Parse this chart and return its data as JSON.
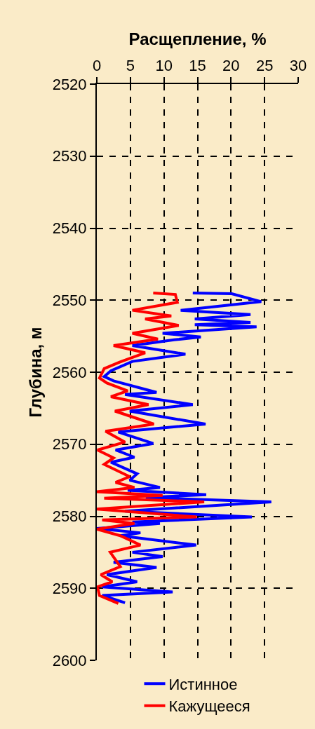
{
  "chart_data": {
    "type": "line",
    "xlabel": "Расщепление, %",
    "ylabel": "Глубина, м",
    "xlim": [
      0,
      30
    ],
    "xticks": [
      0,
      5,
      10,
      15,
      20,
      25,
      30
    ],
    "ylim": [
      2600,
      2520
    ],
    "yticks": [
      2520,
      2530,
      2540,
      2550,
      2560,
      2570,
      2580,
      2590,
      2600
    ],
    "grid": true,
    "legend": "bottom",
    "line_style": "solid",
    "series": [
      {
        "name": "Истинное",
        "color": "#0000ff",
        "x": [
          14.3,
          20.1,
          24.5,
          12.5,
          22.9,
          14.6,
          22.9,
          14.6,
          23.8,
          9.8,
          15.5,
          11.5,
          5.3,
          13.2,
          5.3,
          2.1,
          1.1,
          2.5,
          8.9,
          4.2,
          14.3,
          4.9,
          16.2,
          3.2,
          8.4,
          2.8,
          5.6,
          2.1,
          6.0,
          4.9,
          9.4,
          4.6,
          16.3,
          7.3,
          26.0,
          4.2,
          23.1,
          5.3,
          9.4,
          0,
          6.5,
          3.5,
          14.8,
          5.3,
          9.8,
          2.5,
          8.9,
          1.5,
          6.0,
          0.8,
          11.3,
          0.8,
          4.2
        ],
        "values": [
          2549.0,
          2549.1,
          2550.2,
          2551.4,
          2552.0,
          2552.6,
          2553.1,
          2553.4,
          2553.7,
          2554.6,
          2555.1,
          2555.5,
          2556.3,
          2557.5,
          2558.5,
          2559.8,
          2560.6,
          2561.2,
          2562.8,
          2563.1,
          2564.5,
          2565.4,
          2567.2,
          2568.3,
          2569.9,
          2570.8,
          2571.8,
          2572.5,
          2574.1,
          2575.0,
          2576.0,
          2576.4,
          2577.0,
          2577.4,
          2578.0,
          2579.3,
          2580.1,
          2580.8,
          2581.0,
          2581.7,
          2582.3,
          2582.7,
          2584.0,
          2585.0,
          2585.6,
          2586.4,
          2587.1,
          2588.1,
          2589.1,
          2589.8,
          2590.5,
          2591.0,
          2592.0
        ]
      },
      {
        "name": "Кажущееся",
        "color": "#ff0000",
        "x": [
          8.4,
          11.7,
          12.0,
          5.3,
          11.1,
          7.2,
          12.2,
          5.3,
          9.1,
          2.5,
          7.2,
          3.4,
          1.1,
          0.4,
          1.5,
          4.6,
          2.1,
          7.7,
          2.7,
          8.5,
          1.3,
          4.2,
          0.1,
          2.5,
          1.1,
          4.9,
          2.8,
          5.6,
          0,
          9.8,
          1.1,
          16.0,
          0,
          14.9,
          0.8,
          5.6,
          0,
          3.5,
          6.5,
          2.0,
          3.5,
          0.6,
          2.3,
          0.1,
          0.4,
          3.2
        ],
        "values": [
          2549.0,
          2549.2,
          2550.3,
          2551.4,
          2552.2,
          2552.6,
          2553.5,
          2554.6,
          2555.4,
          2556.3,
          2557.3,
          2558.6,
          2559.5,
          2560.8,
          2561.5,
          2562.6,
          2563.4,
          2564.5,
          2565.4,
          2567.2,
          2568.2,
          2569.7,
          2570.8,
          2571.9,
          2572.8,
          2574.5,
          2575.3,
          2576.0,
          2576.6,
          2577.1,
          2577.5,
          2578.0,
          2579.0,
          2580.1,
          2580.5,
          2581.0,
          2581.8,
          2582.7,
          2584.0,
          2585.0,
          2587.0,
          2588.1,
          2589.1,
          2589.8,
          2591.0,
          2592.1
        ]
      }
    ]
  }
}
